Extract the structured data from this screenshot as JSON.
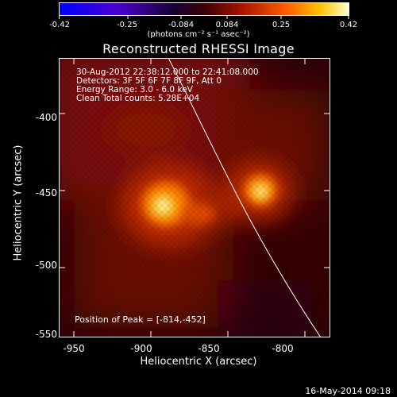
{
  "colorbar": {
    "ticks": [
      "-0.42",
      "-0.25",
      "-0.084",
      "0.084",
      "0.25",
      "0.42"
    ],
    "units_text": "(photons cm⁻² s⁻¹ asec⁻²)",
    "colors": [
      "#0000ff",
      "#5a00c8",
      "#000000",
      "#8a0000",
      "#ff4400",
      "#ffcc00",
      "#ffffc0"
    ]
  },
  "title": "Reconstructed RHESSI Image",
  "info": {
    "line1": "30-Aug-2012 22:38:12.000 to 22:41:08.000",
    "line2": "Detectors: 3F 5F 6F 7F 8F 9F, Att 0",
    "line3": "Energy Range: 3.0 - 6.0 keV",
    "line4": "Clean     Total counts: 5.28E+04"
  },
  "peak_text": "Position of Peak = [-814,-452]",
  "axes": {
    "xlabel": "Heliocentric X (arcsec)",
    "ylabel": "Heliocentric Y (arcsec)",
    "xticks": [
      "-950",
      "-900",
      "-850",
      "-800"
    ],
    "yticks": [
      "-400",
      "-450",
      "-500",
      "-550"
    ],
    "xrange": [
      -955,
      -778
    ],
    "yrange": [
      -552,
      -372
    ]
  },
  "sources": [
    {
      "name": "source-left",
      "x": -878,
      "y": -458
    },
    {
      "name": "source-right",
      "x": -814,
      "y": -452
    }
  ],
  "footer": "16-May-2014 09:18"
}
